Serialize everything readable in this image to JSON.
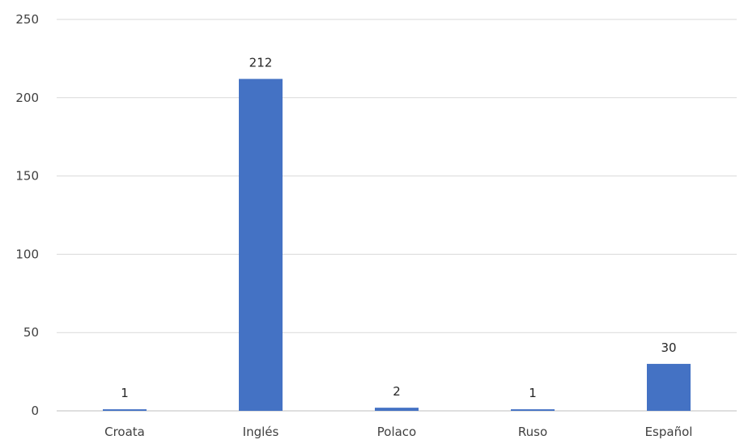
{
  "chart_data": {
    "type": "bar",
    "categories": [
      "Croata",
      "Inglés",
      "Polaco",
      "Ruso",
      "Español"
    ],
    "values": [
      1,
      212,
      2,
      1,
      30
    ],
    "data_labels": [
      "1",
      "212",
      "2",
      "1",
      "30"
    ],
    "ylim": [
      0,
      250
    ],
    "yticks": [
      0,
      50,
      100,
      150,
      200,
      250
    ],
    "ytick_labels": [
      "0",
      "50",
      "100",
      "150",
      "200",
      "250"
    ],
    "grid": true,
    "legend": "none",
    "bar_color": "#4472c4"
  }
}
